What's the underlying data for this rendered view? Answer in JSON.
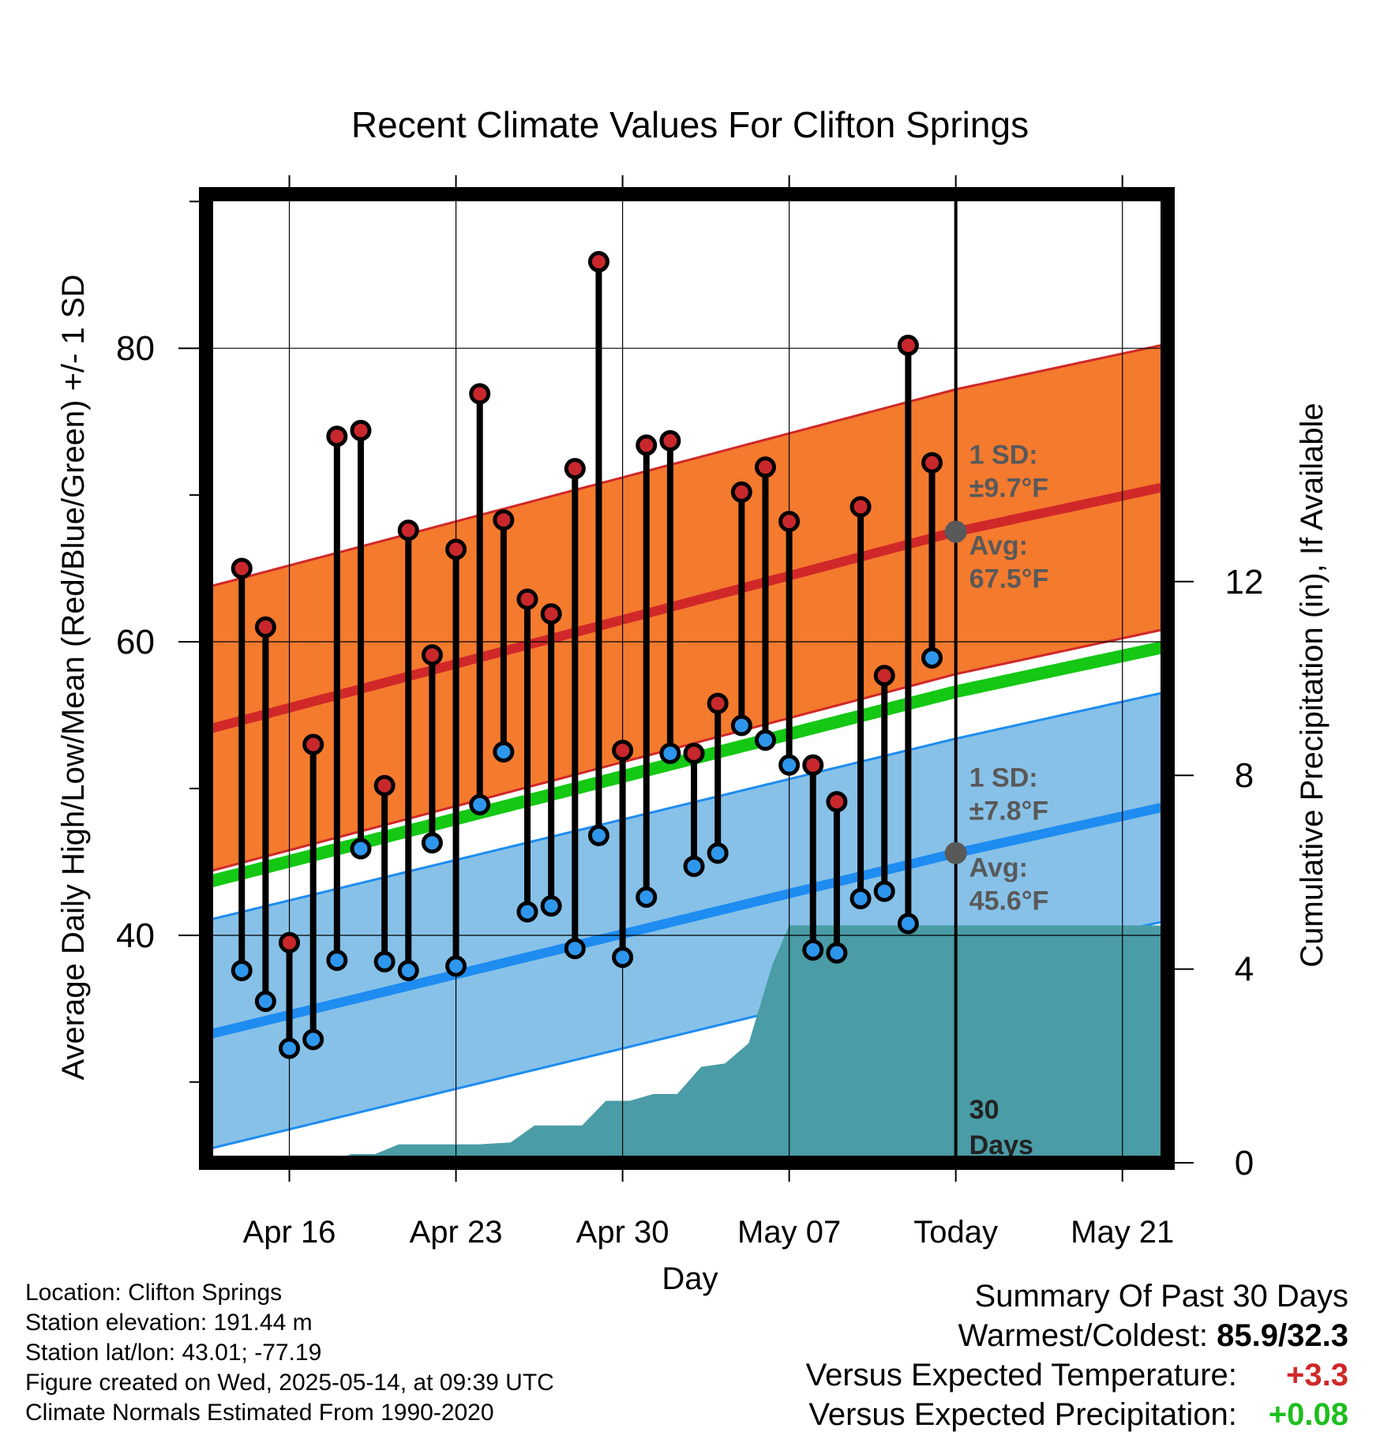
{
  "chart_data": {
    "type": "line",
    "title": "Recent Climate Values For Clifton Springs",
    "xlabel": "Day",
    "ylabel": "Average Daily High/Low/Mean (Red/Blue/Green) +/- 1 SD",
    "y2label": "Cumulative Precipitation (in), If Available",
    "x_ticks": [
      "Apr 16",
      "Apr 23",
      "Apr 30",
      "May 07",
      "Today",
      "May 21"
    ],
    "y_ticks": [
      40,
      60,
      80
    ],
    "y2_ticks": [
      0,
      4,
      8,
      12
    ],
    "ylim": [
      24.5,
      90.5
    ],
    "y2lim": [
      0,
      20
    ],
    "xlim": [
      "Apr 12.5",
      "May 22.9"
    ],
    "grid": true,
    "series": [
      {
        "name": "Red",
        "x": [
          "Apr 14",
          "Apr 15",
          "Apr 16",
          "Apr 17",
          "Apr 18",
          "Apr 19",
          "Apr 20",
          "Apr 21",
          "Apr 22",
          "Apr 23",
          "Apr 24",
          "Apr 25",
          "Apr 26",
          "Apr 27",
          "Apr 28",
          "Apr 29",
          "Apr 30",
          "May 01",
          "May 02",
          "May 03",
          "May 04",
          "May 05",
          "May 06",
          "May 07",
          "May 08",
          "May 09",
          "May 10",
          "May 11",
          "May 12",
          "May 13"
        ],
        "values": [
          65.0,
          61.0,
          39.5,
          53.0,
          74.0,
          74.4,
          50.2,
          67.6,
          59.1,
          66.3,
          76.9,
          68.3,
          62.9,
          61.9,
          71.8,
          85.9,
          52.6,
          73.4,
          73.7,
          52.4,
          55.8,
          70.2,
          71.9,
          68.2,
          51.6,
          49.1,
          69.2,
          57.7,
          80.2,
          72.2
        ]
      },
      {
        "name": "Blue",
        "x": [
          "Apr 14",
          "Apr 15",
          "Apr 16",
          "Apr 17",
          "Apr 18",
          "Apr 19",
          "Apr 20",
          "Apr 21",
          "Apr 22",
          "Apr 23",
          "Apr 24",
          "Apr 25",
          "Apr 26",
          "Apr 27",
          "Apr 28",
          "Apr 29",
          "Apr 30",
          "May 01",
          "May 02",
          "May 03",
          "May 04",
          "May 05",
          "May 06",
          "May 07",
          "May 08",
          "May 09",
          "May 10",
          "May 11",
          "May 12",
          "May 13"
        ],
        "values": [
          37.6,
          35.5,
          32.3,
          32.9,
          38.3,
          45.9,
          38.2,
          37.6,
          46.3,
          37.9,
          48.9,
          52.5,
          41.6,
          42.0,
          39.1,
          46.8,
          38.5,
          42.6,
          52.4,
          44.7,
          45.6,
          54.3,
          53.3,
          51.6,
          39.0,
          38.8,
          42.5,
          43.0,
          40.8,
          58.9
        ]
      },
      {
        "name": "Red Avg",
        "x": [
          "Apr 12.5",
          "Today",
          "May 22.9"
        ],
        "values": [
          54.0,
          67.5,
          70.6
        ],
        "sd": 9.7
      },
      {
        "name": "Blue Avg",
        "x": [
          "Apr 12.5",
          "Today",
          "May 22.9"
        ],
        "values": [
          33.2,
          45.6,
          48.8
        ],
        "sd": 7.8
      },
      {
        "name": "Green",
        "x": [
          "Apr 12.5",
          "Today",
          "May 22.9"
        ],
        "values": [
          43.6,
          56.6,
          59.7
        ]
      },
      {
        "name": "Precipitation",
        "x": [
          "Apr 12.5",
          "Apr 16",
          "Apr 17.6",
          "Apr 18.6",
          "Apr 19.6",
          "Apr 20.6",
          "Apr 21.6",
          "Apr 23",
          "Apr 24",
          "Apr 25.3",
          "Apr 26.3",
          "Apr 27.3",
          "Apr 28.3",
          "Apr 29.3",
          "Apr 30.3",
          "May 01.3",
          "May 02.3",
          "May 03.3",
          "May 04.3",
          "May 05.3",
          "May 06.3",
          "May 07",
          "May 22.9"
        ],
        "values": [
          0,
          0,
          0,
          0.18,
          0.18,
          0.38,
          0.38,
          0.38,
          0.38,
          0.42,
          0.77,
          0.77,
          0.77,
          1.28,
          1.28,
          1.42,
          1.42,
          1.98,
          2.05,
          2.47,
          4.1,
          4.9,
          4.9
        ]
      }
    ],
    "today": "May 14",
    "annotations": {
      "red_sd": "1 SD:",
      "red_sd_value": "±9.7°F",
      "red_avg": "Avg:",
      "red_avg_value": "67.5°F",
      "blue_sd": "1 SD:",
      "blue_sd_value": "±7.8°F",
      "blue_avg": "Avg:",
      "blue_avg_value": "45.6°F",
      "days_num": "30",
      "days_word": "Days"
    },
    "colors": {
      "high_band": "#f47a2e",
      "high_line": "#d02828",
      "low_band": "#87c1e8",
      "low_line": "#1e8cf0",
      "mean_line": "#14c814",
      "precip": "#4a9ca6",
      "high_marker": "#c8282c",
      "low_marker": "#2e96ec",
      "annotation_text": "#595959",
      "avg_marker": "#595959"
    }
  },
  "footer": {
    "location": "Location: Clifton Springs",
    "elevation": "Station elevation: 191.44 m",
    "latlon": "Station lat/lon: 43.01; -77.19",
    "created": "Figure created on Wed, 2025-05-14, at 09:39 UTC",
    "normals": "Climate Normals Estimated From 1990-2020"
  },
  "summary": {
    "heading": "Summary Of Past 30 Days",
    "warm_cold_label": "Warmest/Coldest:",
    "warm_cold_value": "85.9/32.3",
    "temp_label": "Versus Expected Temperature:",
    "temp_value": "+3.3",
    "precip_label": "Versus Expected Precipitation:",
    "precip_value": "+0.08"
  }
}
